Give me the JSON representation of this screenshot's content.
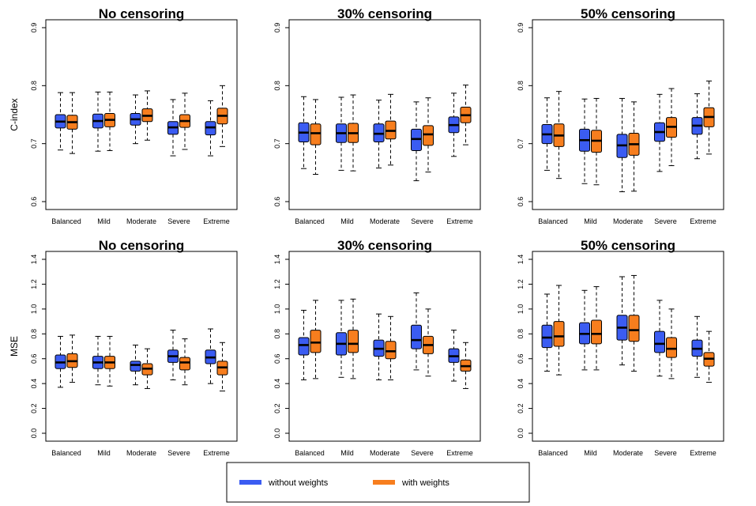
{
  "colors": {
    "without": "#3b5cf2",
    "with": "#f77e1e",
    "ink": "#000000"
  },
  "legend": {
    "without_label": "without weights",
    "with_label": "with weights"
  },
  "chart_data": [
    {
      "type": "boxplot",
      "title": "No censoring",
      "ylabel": "C-index",
      "ylim": [
        0.6,
        0.9
      ],
      "yticks": [
        0.6,
        0.7,
        0.8,
        0.9
      ],
      "categories": [
        "Balanced",
        "Mild",
        "Moderate",
        "Severe",
        "Extreme"
      ],
      "series": [
        {
          "name": "without weights",
          "boxes": [
            {
              "min": 0.689,
              "q1": 0.727,
              "median": 0.738,
              "q3": 0.75,
              "max": 0.788
            },
            {
              "min": 0.687,
              "q1": 0.727,
              "median": 0.739,
              "q3": 0.751,
              "max": 0.789
            },
            {
              "min": 0.7,
              "q1": 0.732,
              "median": 0.742,
              "q3": 0.752,
              "max": 0.784
            },
            {
              "min": 0.679,
              "q1": 0.716,
              "median": 0.728,
              "q3": 0.738,
              "max": 0.776
            },
            {
              "min": 0.679,
              "q1": 0.715,
              "median": 0.728,
              "q3": 0.738,
              "max": 0.774
            }
          ]
        },
        {
          "name": "with weights",
          "boxes": [
            {
              "min": 0.683,
              "q1": 0.725,
              "median": 0.737,
              "q3": 0.749,
              "max": 0.788
            },
            {
              "min": 0.688,
              "q1": 0.729,
              "median": 0.741,
              "q3": 0.752,
              "max": 0.789
            },
            {
              "min": 0.706,
              "q1": 0.738,
              "median": 0.748,
              "q3": 0.76,
              "max": 0.791
            },
            {
              "min": 0.69,
              "q1": 0.728,
              "median": 0.739,
              "q3": 0.75,
              "max": 0.787
            },
            {
              "min": 0.695,
              "q1": 0.734,
              "median": 0.748,
              "q3": 0.761,
              "max": 0.8
            }
          ]
        }
      ]
    },
    {
      "type": "boxplot",
      "title": "30% censoring",
      "ylabel": "",
      "ylim": [
        0.6,
        0.9
      ],
      "yticks": [
        0.6,
        0.7,
        0.8,
        0.9
      ],
      "categories": [
        "Balanced",
        "Mild",
        "Moderate",
        "Severe",
        "Extreme"
      ],
      "series": [
        {
          "name": "without weights",
          "boxes": [
            {
              "min": 0.657,
              "q1": 0.703,
              "median": 0.719,
              "q3": 0.736,
              "max": 0.781
            },
            {
              "min": 0.654,
              "q1": 0.702,
              "median": 0.718,
              "q3": 0.734,
              "max": 0.78
            },
            {
              "min": 0.658,
              "q1": 0.703,
              "median": 0.717,
              "q3": 0.734,
              "max": 0.775
            },
            {
              "min": 0.636,
              "q1": 0.688,
              "median": 0.708,
              "q3": 0.725,
              "max": 0.772
            },
            {
              "min": 0.678,
              "q1": 0.719,
              "median": 0.732,
              "q3": 0.746,
              "max": 0.787
            }
          ]
        },
        {
          "name": "with weights",
          "boxes": [
            {
              "min": 0.647,
              "q1": 0.698,
              "median": 0.718,
              "q3": 0.734,
              "max": 0.776
            },
            {
              "min": 0.653,
              "q1": 0.702,
              "median": 0.718,
              "q3": 0.735,
              "max": 0.784
            },
            {
              "min": 0.663,
              "q1": 0.708,
              "median": 0.722,
              "q3": 0.739,
              "max": 0.785
            },
            {
              "min": 0.651,
              "q1": 0.697,
              "median": 0.716,
              "q3": 0.731,
              "max": 0.779
            },
            {
              "min": 0.698,
              "q1": 0.736,
              "median": 0.749,
              "q3": 0.763,
              "max": 0.801
            }
          ]
        }
      ]
    },
    {
      "type": "boxplot",
      "title": "50% censoring",
      "ylabel": "",
      "ylim": [
        0.6,
        0.9
      ],
      "yticks": [
        0.6,
        0.7,
        0.8,
        0.9
      ],
      "categories": [
        "Balanced",
        "Mild",
        "Moderate",
        "Severe",
        "Extreme"
      ],
      "series": [
        {
          "name": "without weights",
          "boxes": [
            {
              "min": 0.654,
              "q1": 0.7,
              "median": 0.716,
              "q3": 0.733,
              "max": 0.779
            },
            {
              "min": 0.631,
              "q1": 0.687,
              "median": 0.706,
              "q3": 0.725,
              "max": 0.777
            },
            {
              "min": 0.617,
              "q1": 0.676,
              "median": 0.697,
              "q3": 0.716,
              "max": 0.778
            },
            {
              "min": 0.652,
              "q1": 0.704,
              "median": 0.72,
              "q3": 0.736,
              "max": 0.785
            },
            {
              "min": 0.674,
              "q1": 0.716,
              "median": 0.731,
              "q3": 0.745,
              "max": 0.786
            }
          ]
        },
        {
          "name": "with weights",
          "boxes": [
            {
              "min": 0.64,
              "q1": 0.695,
              "median": 0.714,
              "q3": 0.734,
              "max": 0.79
            },
            {
              "min": 0.629,
              "q1": 0.685,
              "median": 0.705,
              "q3": 0.723,
              "max": 0.778
            },
            {
              "min": 0.618,
              "q1": 0.68,
              "median": 0.699,
              "q3": 0.718,
              "max": 0.772
            },
            {
              "min": 0.662,
              "q1": 0.711,
              "median": 0.729,
              "q3": 0.745,
              "max": 0.795
            },
            {
              "min": 0.682,
              "q1": 0.729,
              "median": 0.746,
              "q3": 0.762,
              "max": 0.808
            }
          ]
        }
      ]
    },
    {
      "type": "boxplot",
      "title": "No censoring",
      "ylabel": "MSE",
      "ylim": [
        0.0,
        1.4
      ],
      "yticks": [
        0.0,
        0.2,
        0.4,
        0.6,
        0.8,
        1.0,
        1.2,
        1.4
      ],
      "categories": [
        "Balanced",
        "Mild",
        "Moderate",
        "Severe",
        "Extreme"
      ],
      "series": [
        {
          "name": "without weights",
          "boxes": [
            {
              "min": 0.37,
              "q1": 0.52,
              "median": 0.57,
              "q3": 0.63,
              "max": 0.78
            },
            {
              "min": 0.39,
              "q1": 0.52,
              "median": 0.57,
              "q3": 0.62,
              "max": 0.78
            },
            {
              "min": 0.39,
              "q1": 0.5,
              "median": 0.55,
              "q3": 0.58,
              "max": 0.71
            },
            {
              "min": 0.43,
              "q1": 0.57,
              "median": 0.62,
              "q3": 0.67,
              "max": 0.83
            },
            {
              "min": 0.4,
              "q1": 0.56,
              "median": 0.61,
              "q3": 0.67,
              "max": 0.84
            }
          ]
        },
        {
          "name": "with weights",
          "boxes": [
            {
              "min": 0.41,
              "q1": 0.53,
              "median": 0.58,
              "q3": 0.64,
              "max": 0.79
            },
            {
              "min": 0.38,
              "q1": 0.52,
              "median": 0.57,
              "q3": 0.62,
              "max": 0.78
            },
            {
              "min": 0.36,
              "q1": 0.47,
              "median": 0.52,
              "q3": 0.56,
              "max": 0.68
            },
            {
              "min": 0.39,
              "q1": 0.51,
              "median": 0.57,
              "q3": 0.61,
              "max": 0.76
            },
            {
              "min": 0.34,
              "q1": 0.47,
              "median": 0.53,
              "q3": 0.58,
              "max": 0.73
            }
          ]
        }
      ]
    },
    {
      "type": "boxplot",
      "title": "30% censoring",
      "ylabel": "",
      "ylim": [
        0.0,
        1.4
      ],
      "yticks": [
        0.0,
        0.2,
        0.4,
        0.6,
        0.8,
        1.0,
        1.2,
        1.4
      ],
      "categories": [
        "Balanced",
        "Mild",
        "Moderate",
        "Severe",
        "Extreme"
      ],
      "series": [
        {
          "name": "without weights",
          "boxes": [
            {
              "min": 0.43,
              "q1": 0.63,
              "median": 0.71,
              "q3": 0.77,
              "max": 0.99
            },
            {
              "min": 0.45,
              "q1": 0.63,
              "median": 0.72,
              "q3": 0.81,
              "max": 1.07
            },
            {
              "min": 0.43,
              "q1": 0.62,
              "median": 0.68,
              "q3": 0.75,
              "max": 0.96
            },
            {
              "min": 0.51,
              "q1": 0.68,
              "median": 0.75,
              "q3": 0.87,
              "max": 1.13
            },
            {
              "min": 0.42,
              "q1": 0.57,
              "median": 0.62,
              "q3": 0.68,
              "max": 0.83
            }
          ]
        },
        {
          "name": "with weights",
          "boxes": [
            {
              "min": 0.44,
              "q1": 0.65,
              "median": 0.73,
              "q3": 0.83,
              "max": 1.07
            },
            {
              "min": 0.44,
              "q1": 0.65,
              "median": 0.72,
              "q3": 0.83,
              "max": 1.08
            },
            {
              "min": 0.43,
              "q1": 0.6,
              "median": 0.66,
              "q3": 0.74,
              "max": 0.94
            },
            {
              "min": 0.46,
              "q1": 0.64,
              "median": 0.71,
              "q3": 0.78,
              "max": 1.0
            },
            {
              "min": 0.36,
              "q1": 0.5,
              "median": 0.54,
              "q3": 0.59,
              "max": 0.73
            }
          ]
        }
      ]
    },
    {
      "type": "boxplot",
      "title": "50% censoring",
      "ylabel": "",
      "ylim": [
        0.0,
        1.4
      ],
      "yticks": [
        0.0,
        0.2,
        0.4,
        0.6,
        0.8,
        1.0,
        1.2,
        1.4
      ],
      "categories": [
        "Balanced",
        "Mild",
        "Moderate",
        "Severe",
        "Extreme"
      ],
      "series": [
        {
          "name": "without weights",
          "boxes": [
            {
              "min": 0.5,
              "q1": 0.69,
              "median": 0.77,
              "q3": 0.87,
              "max": 1.12
            },
            {
              "min": 0.51,
              "q1": 0.72,
              "median": 0.8,
              "q3": 0.89,
              "max": 1.15
            },
            {
              "min": 0.55,
              "q1": 0.75,
              "median": 0.85,
              "q3": 0.95,
              "max": 1.26
            },
            {
              "min": 0.46,
              "q1": 0.65,
              "median": 0.72,
              "q3": 0.82,
              "max": 1.07
            },
            {
              "min": 0.45,
              "q1": 0.62,
              "median": 0.68,
              "q3": 0.75,
              "max": 0.94
            }
          ]
        },
        {
          "name": "with weights",
          "boxes": [
            {
              "min": 0.47,
              "q1": 0.7,
              "median": 0.78,
              "q3": 0.9,
              "max": 1.19
            },
            {
              "min": 0.51,
              "q1": 0.72,
              "median": 0.8,
              "q3": 0.91,
              "max": 1.18
            },
            {
              "min": 0.5,
              "q1": 0.74,
              "median": 0.83,
              "q3": 0.95,
              "max": 1.27
            },
            {
              "min": 0.44,
              "q1": 0.61,
              "median": 0.68,
              "q3": 0.77,
              "max": 1.0
            },
            {
              "min": 0.41,
              "q1": 0.54,
              "median": 0.6,
              "q3": 0.65,
              "max": 0.82
            }
          ]
        }
      ]
    }
  ]
}
